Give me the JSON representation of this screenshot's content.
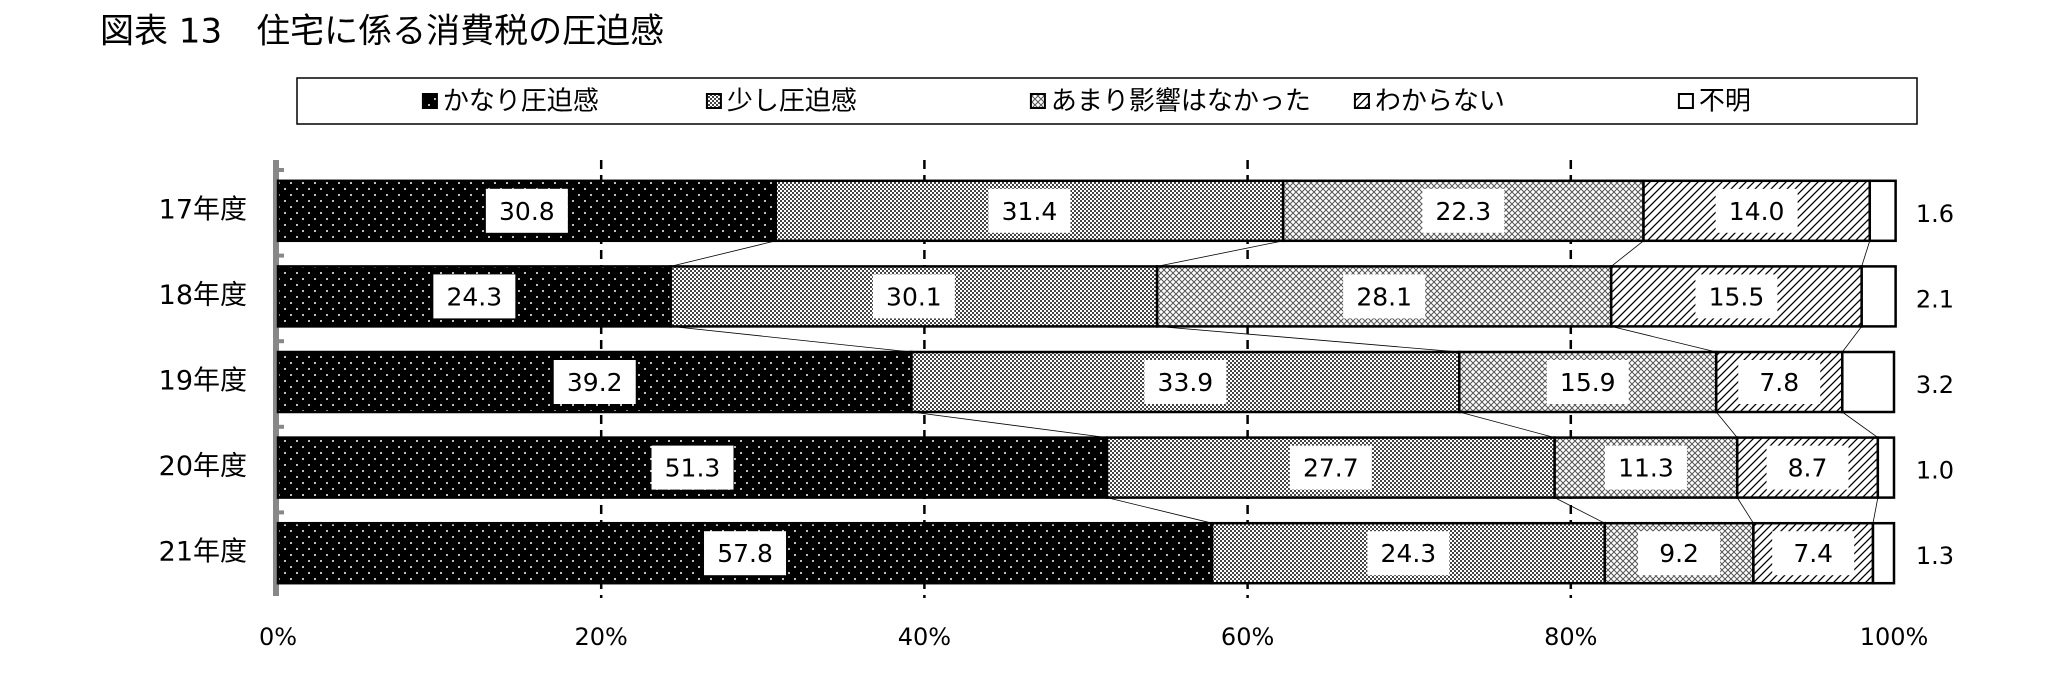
{
  "chart_data": {
    "type": "stacked-barh",
    "title": "図表 13　住宅に係る消費税の圧迫感",
    "categories": [
      "17年度",
      "18年度",
      "19年度",
      "20年度",
      "21年度"
    ],
    "series": [
      {
        "name": "かなり圧迫感",
        "color": "#000000",
        "values": [
          30.8,
          24.3,
          39.2,
          51.3,
          57.8
        ],
        "value_labels": [
          "30.8",
          "24.3",
          "39.2",
          "51.3",
          "57.8"
        ]
      },
      {
        "name": "少し圧迫感",
        "color": "#808080",
        "values": [
          31.4,
          30.1,
          33.9,
          27.7,
          24.3
        ],
        "value_labels": [
          "31.4",
          "30.1",
          "33.9",
          "27.7",
          "24.3"
        ]
      },
      {
        "name": "あまり影響はなかった",
        "color": "#b0b0b0",
        "values": [
          22.3,
          28.1,
          15.9,
          11.3,
          9.2
        ],
        "value_labels": [
          "22.3",
          "28.1",
          "15.9",
          "11.3",
          "9.2"
        ]
      },
      {
        "name": "わからない",
        "color": "#d8d8d8",
        "values": [
          14.0,
          15.5,
          7.8,
          8.7,
          7.4
        ],
        "value_labels": [
          "14.0",
          "15.5",
          "7.8",
          "8.7",
          "7.4"
        ]
      },
      {
        "name": "不明",
        "color": "#ffffff",
        "values": [
          1.6,
          2.1,
          3.2,
          1.0,
          1.3
        ],
        "value_labels": [
          "1.6",
          "2.1",
          "3.2",
          "1.0",
          "1.3"
        ]
      }
    ],
    "xlim": [
      0,
      100
    ],
    "xticks": [
      {
        "value": 0,
        "label": "0%"
      },
      {
        "value": 20,
        "label": "20%"
      },
      {
        "value": 40,
        "label": "40%"
      },
      {
        "value": 60,
        "label": "60%"
      },
      {
        "value": 80,
        "label": "80%"
      },
      {
        "value": 100,
        "label": "100%"
      }
    ],
    "grid": true,
    "legend": "top"
  }
}
